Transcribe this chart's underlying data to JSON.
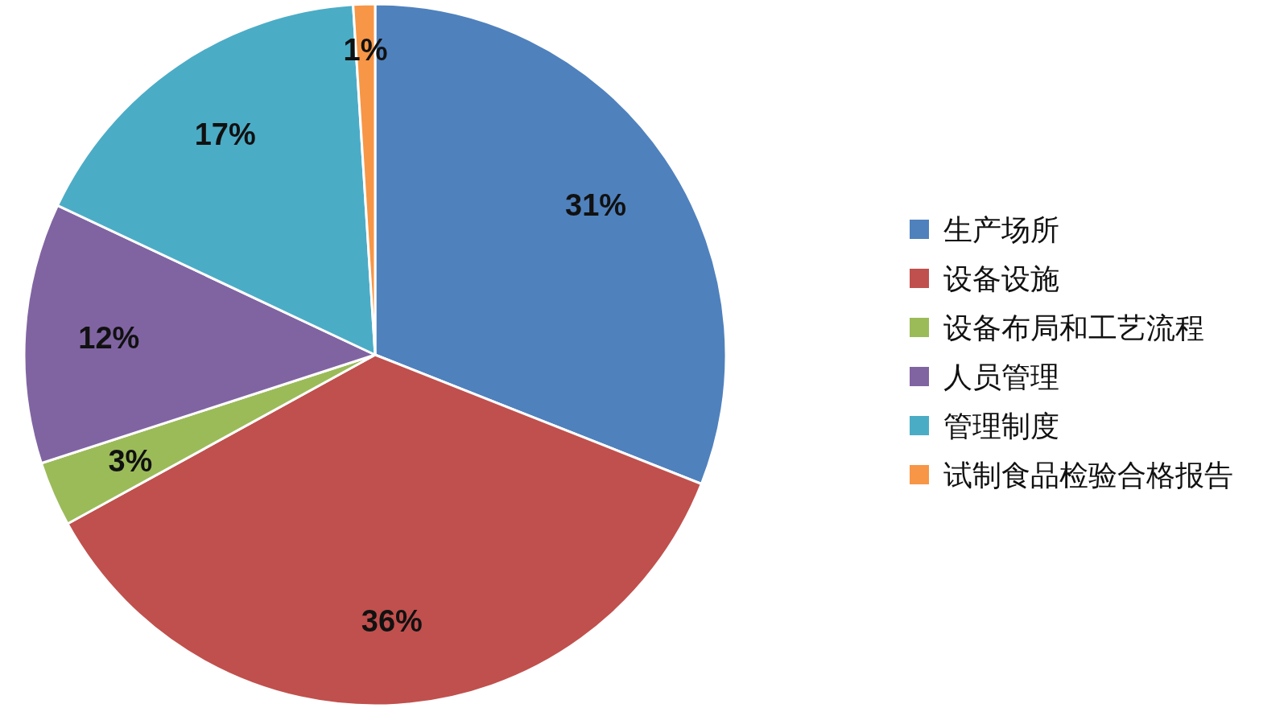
{
  "chart_data": {
    "type": "pie",
    "categories": [
      "生产场所",
      "设备设施",
      "设备布局和工艺流程",
      "人员管理",
      "管理制度",
      "试制食品检验合格报告"
    ],
    "values": [
      31,
      36,
      3,
      12,
      17,
      1
    ],
    "value_labels": [
      "31%",
      "36%",
      "3%",
      "12%",
      "17%",
      "1%"
    ],
    "colors": [
      "#4f81bd",
      "#c0504d",
      "#9bbb59",
      "#8064a2",
      "#4bacc6",
      "#f79646"
    ],
    "legend": "right"
  }
}
